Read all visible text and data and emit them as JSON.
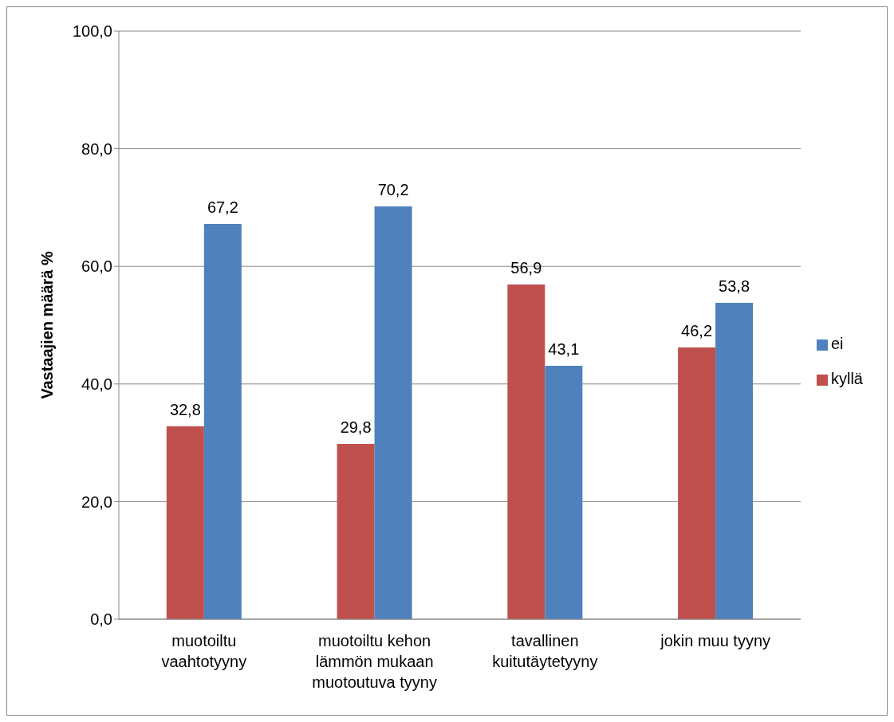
{
  "chart_data": {
    "type": "bar",
    "ylabel": "Vastaajien määrä %",
    "categories": [
      "muotoiltu vaahtotyyny",
      "muotoiltu kehon lämmön mukaan muotoutuva tyyny",
      "tavallinen kuitutäytetyyny",
      "jokin muu tyyny"
    ],
    "series": [
      {
        "name": "kyllä",
        "color": "#c0504d",
        "values": [
          32.8,
          29.8,
          56.9,
          46.2
        ],
        "value_labels": [
          "32,8",
          "29,8",
          "56,9",
          "46,2"
        ]
      },
      {
        "name": "ei",
        "color": "#4f81bd",
        "values": [
          67.2,
          70.2,
          43.1,
          53.8
        ],
        "value_labels": [
          "67,2",
          "70,2",
          "43,1",
          "53,8"
        ]
      }
    ],
    "ylim": [
      0,
      100
    ],
    "yticks": [
      {
        "value": 0,
        "label": "0,0"
      },
      {
        "value": 20,
        "label": "20,0"
      },
      {
        "value": 40,
        "label": "40,0"
      },
      {
        "value": 60,
        "label": "60,0"
      },
      {
        "value": 80,
        "label": "80,0"
      },
      {
        "value": 100,
        "label": "100,0"
      }
    ],
    "grid": "y",
    "legend": "right"
  }
}
